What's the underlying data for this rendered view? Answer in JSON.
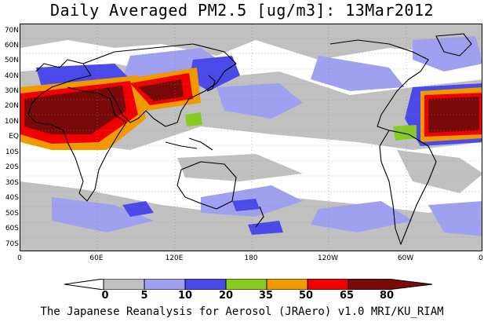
{
  "title": "Daily Averaged PM2.5 [ug/m3]: 13Mar2012",
  "footer": "The Japanese Reanalysis for Aerosol (JRAero) v1.0 MRI/KU_RIAM",
  "map": {
    "lat_labels": [
      "70N",
      "60N",
      "50N",
      "40N",
      "30N",
      "20N",
      "10N",
      "EQ",
      "10S",
      "20S",
      "30S",
      "40S",
      "50S",
      "60S",
      "70S"
    ],
    "lon_labels": [
      "0",
      "60E",
      "120E",
      "180",
      "120W",
      "60W",
      "0"
    ]
  },
  "legend": {
    "levels": [
      "0",
      "5",
      "10",
      "20",
      "35",
      "50",
      "65",
      "80"
    ],
    "colors": [
      "#ffffff",
      "#c0c0c0",
      "#a0a0f0",
      "#4a4ae8",
      "#88cc22",
      "#f09a00",
      "#f00000",
      "#7a0a0a"
    ]
  }
}
